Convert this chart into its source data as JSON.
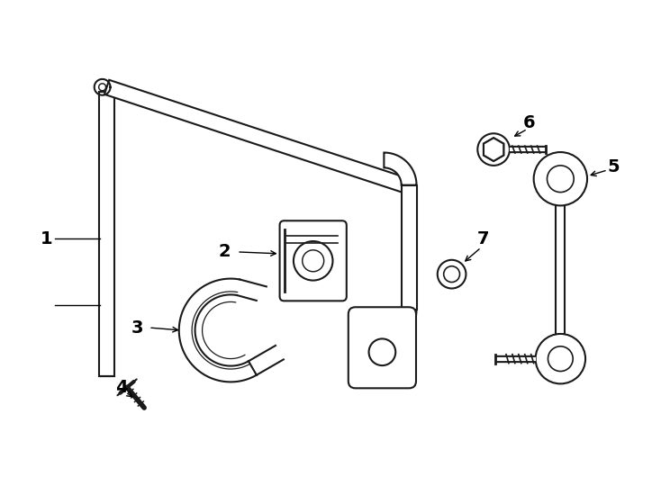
{
  "background_color": "#ffffff",
  "line_color": "#1a1a1a",
  "label_color": "#000000",
  "figure_width": 7.34,
  "figure_height": 5.4,
  "dpi": 100,
  "label_fontsize": 14,
  "label_fontweight": "bold"
}
